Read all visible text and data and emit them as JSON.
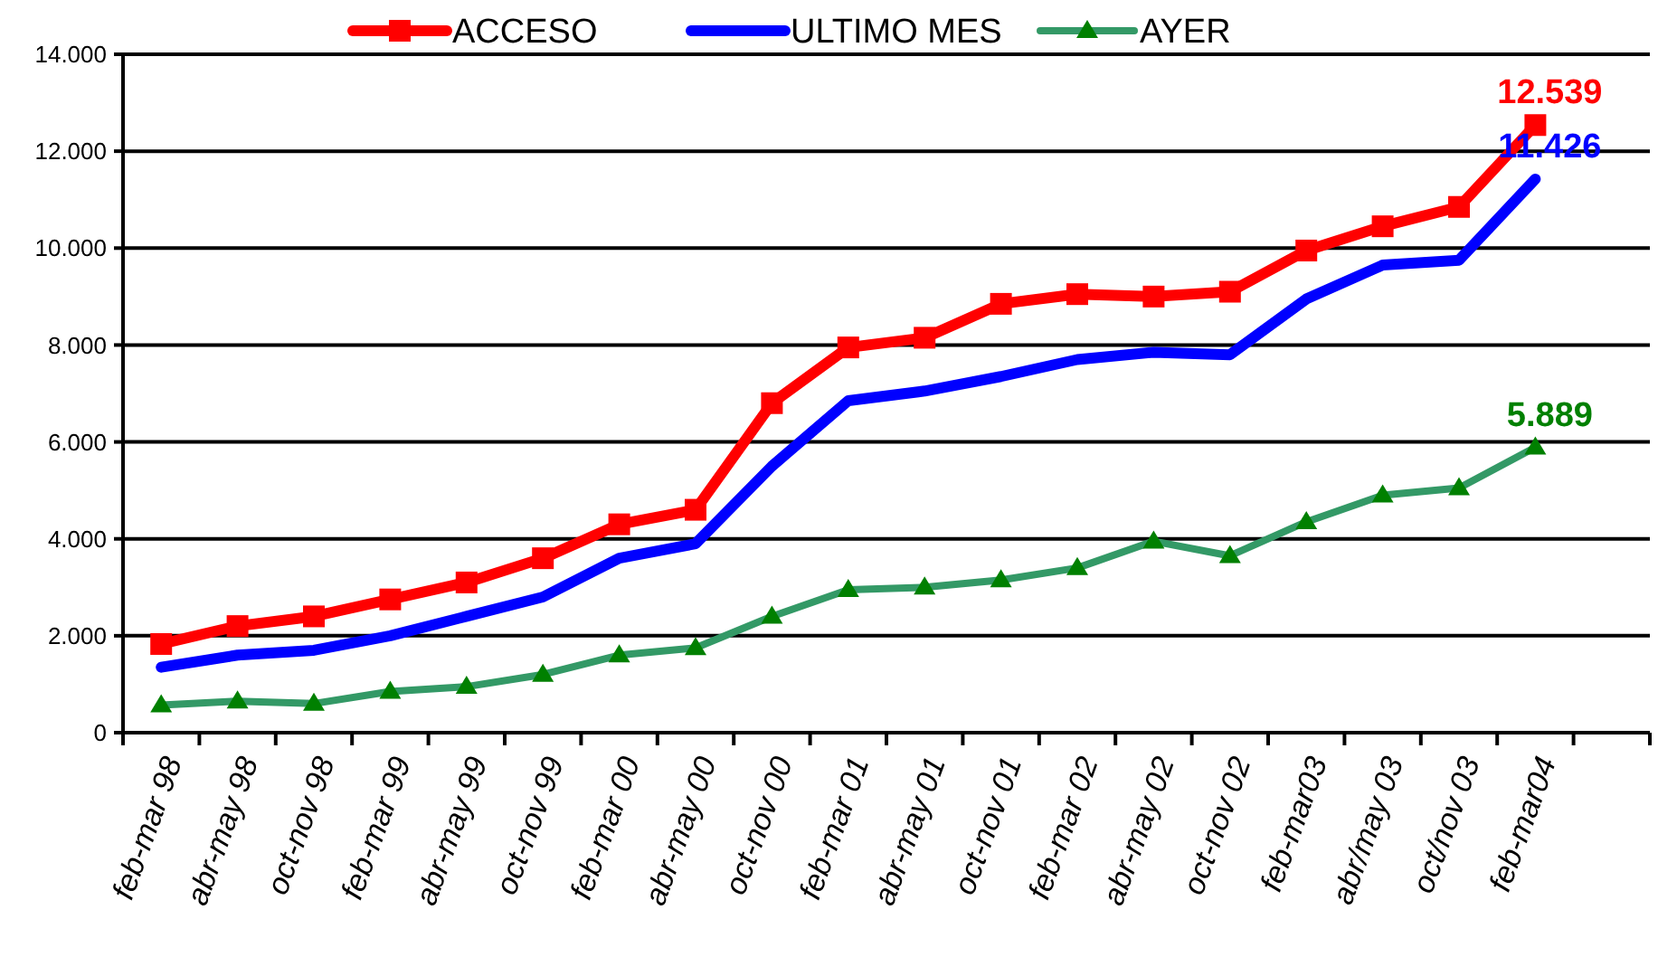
{
  "chart_data": {
    "type": "line",
    "categories": [
      "feb-mar 98",
      "abr-may 98",
      "oct-nov 98",
      "feb-mar 99",
      "abr-may 99",
      "oct-nov 99",
      "feb-mar 00",
      "abr-may 00",
      "oct-nov 00",
      "feb-mar 01",
      "abr-may 01",
      "oct-nov 01",
      "feb-mar 02",
      "abr-may 02",
      "oct-nov 02",
      "feb-mar03",
      "abr/may 03",
      "oct/nov 03",
      "feb-mar04",
      null
    ],
    "series": [
      {
        "name": "ACCESO",
        "color": "#ff0000",
        "marker": "square",
        "values": [
          1830,
          2200,
          2400,
          2750,
          3100,
          3600,
          4300,
          4600,
          6800,
          7950,
          8150,
          8850,
          9050,
          9000,
          9100,
          9950,
          10450,
          10850,
          12539,
          null
        ],
        "value_labels": [
          null,
          null,
          null,
          null,
          null,
          null,
          null,
          null,
          null,
          null,
          null,
          null,
          null,
          null,
          null,
          null,
          null,
          null,
          "12.539",
          null
        ]
      },
      {
        "name": "ULTIMO MES",
        "color": "#0000ff",
        "marker": "none",
        "values": [
          1350,
          1600,
          1700,
          2000,
          2400,
          2800,
          3600,
          3900,
          5500,
          6850,
          7050,
          7350,
          7700,
          7850,
          7800,
          8950,
          9650,
          9750,
          11426,
          null
        ],
        "value_labels": [
          null,
          null,
          null,
          null,
          null,
          null,
          null,
          null,
          null,
          null,
          null,
          null,
          null,
          null,
          null,
          null,
          null,
          null,
          "11.426",
          null
        ]
      },
      {
        "name": "AYER",
        "color": "#339966",
        "marker": "triangle",
        "values": [
          570,
          650,
          600,
          850,
          950,
          1200,
          1600,
          1750,
          2400,
          2950,
          3000,
          3150,
          3400,
          3950,
          3650,
          4350,
          4900,
          5050,
          5889,
          null
        ],
        "value_labels": [
          null,
          null,
          null,
          null,
          null,
          null,
          null,
          null,
          null,
          null,
          null,
          null,
          null,
          null,
          null,
          null,
          null,
          null,
          "5.889",
          null
        ]
      }
    ],
    "ylim": [
      0,
      14000
    ],
    "yticks": [
      {
        "value": 0,
        "label": "0"
      },
      {
        "value": 2000,
        "label": "2.000"
      },
      {
        "value": 4000,
        "label": "4.000"
      },
      {
        "value": 6000,
        "label": "6.000"
      },
      {
        "value": 8000,
        "label": "8.000"
      },
      {
        "value": 10000,
        "label": "10.000"
      },
      {
        "value": 12000,
        "label": "12.000"
      },
      {
        "value": 14000,
        "label": "14.000"
      }
    ],
    "grid": "y",
    "legend": "top",
    "line_style": "solid"
  }
}
